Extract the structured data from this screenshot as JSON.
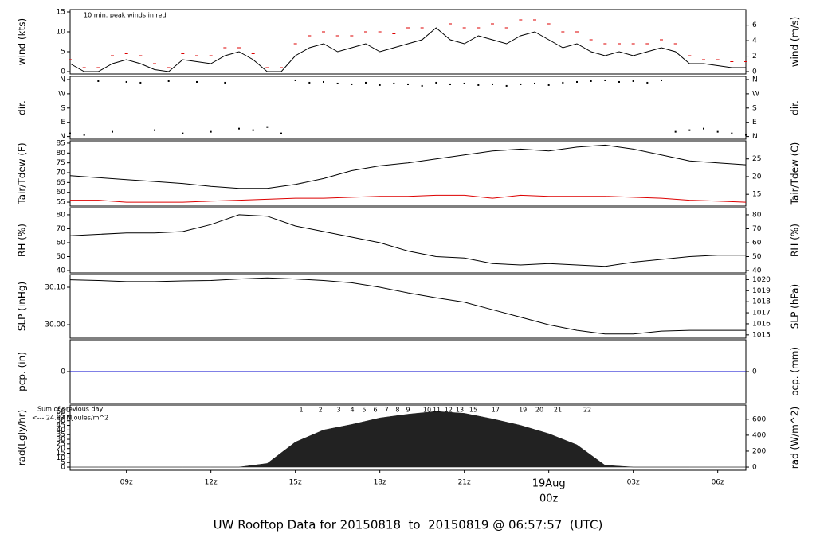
{
  "chart_data": [
    {
      "type": "line",
      "y_label": "wind (kts)",
      "y2_label": "wind (m/s)",
      "annotation": "10 min. peak winds in red",
      "annotation_color": "#dd0000",
      "ylim": [
        -0.6,
        15.6
      ],
      "yticks": [
        0,
        5,
        10,
        15
      ],
      "y2lim": [
        -0.31,
        8.02
      ],
      "y2ticks": [
        0,
        2,
        4,
        6
      ],
      "x": [
        7,
        7.5,
        8,
        8.5,
        9,
        9.5,
        10,
        10.5,
        11,
        11.5,
        12,
        12.5,
        13,
        13.5,
        14,
        14.5,
        15,
        15.5,
        16,
        16.5,
        17,
        17.5,
        18,
        18.5,
        19,
        19.5,
        20,
        20.5,
        21,
        21.5,
        22,
        22.5,
        23,
        23.5,
        24,
        24.5,
        25,
        25.5,
        26,
        26.5,
        27,
        27.5,
        28,
        28.5,
        29,
        29.5,
        30,
        30.5,
        31
      ],
      "series": [
        {
          "color": "#000000",
          "values": [
            2,
            0,
            0,
            2,
            3,
            2,
            0.5,
            0,
            3,
            2.5,
            2,
            4,
            5,
            3,
            0,
            0,
            4,
            6,
            7,
            5,
            6,
            7,
            5,
            6,
            7,
            8,
            11,
            8,
            7,
            9,
            8,
            7,
            9,
            10,
            8,
            6,
            7,
            5,
            4,
            5,
            4,
            5,
            6,
            5,
            2,
            2,
            1.5,
            1,
            1
          ]
        },
        {
          "color": "#dd0000",
          "marker": "dash",
          "values": [
            3,
            1,
            1,
            4,
            4.5,
            4,
            2,
            1,
            4.5,
            4,
            4,
            6,
            6,
            4.5,
            1,
            1,
            7,
            9,
            10,
            9,
            9,
            10,
            10,
            9.5,
            11,
            11,
            14.5,
            12,
            11,
            11,
            12,
            11,
            13,
            13,
            12,
            10,
            10,
            8,
            7,
            7,
            7,
            7,
            8,
            7,
            4,
            3,
            3,
            2.5,
            2.5
          ]
        }
      ]
    },
    {
      "type": "scatter",
      "y_label": "dir.",
      "y2_label": "dir.",
      "ylim": [
        -17,
        380
      ],
      "yticks": [
        {
          "value": 0,
          "label": "N"
        },
        {
          "value": 90,
          "label": "E"
        },
        {
          "value": 180,
          "label": "S"
        },
        {
          "value": 270,
          "label": "W"
        },
        {
          "value": 360,
          "label": "N"
        }
      ],
      "y2lim": [
        -17,
        380
      ],
      "y2ticks": [
        {
          "value": 0,
          "label": "N"
        },
        {
          "value": 90,
          "label": "E"
        },
        {
          "value": 180,
          "label": "S"
        },
        {
          "value": 270,
          "label": "W"
        },
        {
          "value": 360,
          "label": "N"
        }
      ],
      "x": [
        7,
        7.5,
        8,
        8.5,
        9,
        9.5,
        10,
        10.5,
        11,
        11.5,
        12,
        12.5,
        13,
        13.5,
        14,
        14.5,
        15,
        15.5,
        16,
        16.5,
        17,
        17.5,
        18,
        18.5,
        19,
        19.5,
        20,
        20.5,
        21,
        21.5,
        22,
        22.5,
        23,
        23.5,
        24,
        24.5,
        25,
        25.5,
        26,
        26.5,
        27,
        27.5,
        28,
        28.5,
        29,
        29.5,
        30,
        30.5,
        31
      ],
      "series": [
        {
          "color": "#000000",
          "values": [
            20,
            10,
            350,
            30,
            345,
            340,
            40,
            350,
            20,
            345,
            30,
            340,
            50,
            40,
            60,
            20,
            355,
            340,
            345,
            335,
            330,
            340,
            325,
            335,
            330,
            320,
            340,
            330,
            335,
            325,
            330,
            320,
            330,
            335,
            325,
            340,
            345,
            350,
            355,
            345,
            350,
            340,
            355,
            30,
            40,
            50,
            30,
            20,
            10
          ]
        }
      ]
    },
    {
      "type": "line",
      "y_label": "Tair/Tdew (F)",
      "y2_label": "Tair/Tdew (C)",
      "ylim": [
        53.0,
        86.2
      ],
      "yticks": [
        55,
        60,
        65,
        70,
        75,
        80,
        85
      ],
      "y2lim": [
        11.67,
        30.11
      ],
      "y2ticks": [
        15,
        20,
        25
      ],
      "x": [
        7,
        8,
        9,
        10,
        11,
        12,
        13,
        14,
        15,
        16,
        17,
        18,
        19,
        20,
        21,
        22,
        23,
        24,
        25,
        26,
        27,
        28,
        29,
        30,
        31
      ],
      "series": [
        {
          "color": "#000000",
          "values": [
            68.5,
            67.5,
            66.5,
            65.5,
            64.5,
            63,
            62,
            62,
            64,
            67,
            71,
            73.5,
            75,
            77,
            79,
            81,
            82,
            81,
            83,
            84,
            82,
            79,
            76,
            75,
            74
          ]
        },
        {
          "color": "#dd0000",
          "values": [
            56,
            56,
            55,
            55,
            55,
            55.5,
            56,
            56.5,
            57,
            57,
            57.5,
            58,
            58,
            58.5,
            58.5,
            57,
            58.5,
            58,
            58,
            58,
            57.5,
            57,
            56,
            55.5,
            55
          ]
        }
      ]
    },
    {
      "type": "line",
      "y_label": "RH (%)",
      "y2_label": "RH (%)",
      "ylim": [
        38.3,
        85.1
      ],
      "yticks": [
        40,
        50,
        60,
        70,
        80
      ],
      "y2lim": [
        38.3,
        85.1
      ],
      "y2ticks": [
        40,
        50,
        60,
        70,
        80
      ],
      "x": [
        7,
        8,
        9,
        10,
        11,
        12,
        13,
        14,
        15,
        16,
        17,
        18,
        19,
        20,
        21,
        22,
        23,
        24,
        25,
        26,
        27,
        28,
        29,
        30,
        31
      ],
      "series": [
        {
          "color": "#000000",
          "values": [
            65,
            66,
            67,
            67,
            68,
            73,
            80,
            79,
            72,
            68,
            64,
            60,
            54,
            50,
            49,
            45,
            44,
            45,
            44,
            43,
            46,
            48,
            50,
            51,
            51
          ]
        }
      ]
    },
    {
      "type": "line",
      "y_label": "SLP (inHg)",
      "y2_label": "SLP (hPa)",
      "ylim": [
        29.964,
        30.134
      ],
      "yticks": [
        {
          "value": 30.0,
          "label": "30.00"
        },
        {
          "value": 30.1,
          "label": "30.10"
        }
      ],
      "y2lim": [
        1014.7,
        1020.46
      ],
      "y2ticks": [
        1015,
        1016,
        1017,
        1018,
        1019,
        1020
      ],
      "x": [
        7,
        8,
        9,
        10,
        11,
        12,
        13,
        14,
        15,
        16,
        17,
        18,
        19,
        20,
        21,
        22,
        23,
        24,
        25,
        26,
        27,
        28,
        29,
        30,
        31
      ],
      "series": [
        {
          "color": "#000000",
          "values": [
            30.12,
            30.118,
            30.115,
            30.115,
            30.117,
            30.118,
            30.122,
            30.125,
            30.122,
            30.118,
            30.112,
            30.1,
            30.085,
            30.072,
            30.06,
            30.04,
            30.02,
            30.0,
            29.985,
            29.975,
            29.975,
            29.983,
            29.985,
            29.985,
            29.985
          ]
        }
      ]
    },
    {
      "type": "line",
      "y_label": "pcp. (in)",
      "y2_label": "pcp. (mm)",
      "ylim": [
        -0.1,
        0.1
      ],
      "yticks": [
        0
      ],
      "y2lim": [
        -2.54,
        2.54
      ],
      "y2ticks": [
        0
      ],
      "x": [
        7,
        8,
        9,
        10,
        11,
        12,
        13,
        14,
        15,
        16,
        17,
        18,
        19,
        20,
        21,
        22,
        23,
        24,
        25,
        26,
        27,
        28,
        29,
        30,
        31
      ],
      "series": [
        {
          "color": "#0000cc",
          "values": [
            0,
            0,
            0,
            0,
            0,
            0,
            0,
            0,
            0,
            0,
            0,
            0,
            0,
            0,
            0,
            0,
            0,
            0,
            0,
            0,
            0,
            0,
            0,
            0,
            0
          ]
        }
      ]
    },
    {
      "type": "area",
      "y_label": "rad(Lgly/hr)",
      "y2_label": "rad (W/m^2)",
      "ylim": [
        -3.4,
        66.9
      ],
      "yticks": [
        0,
        5,
        10,
        15,
        20,
        25,
        30,
        35,
        40,
        45,
        50,
        55,
        60
      ],
      "y2lim": [
        -39.5,
        777.5
      ],
      "y2ticks": [
        0,
        200,
        400,
        600
      ],
      "x": [
        7,
        8,
        9,
        10,
        11,
        12,
        13,
        14,
        15,
        16,
        17,
        18,
        19,
        20,
        21,
        22,
        23,
        24,
        25,
        26,
        27,
        28,
        29,
        30,
        31
      ],
      "series": [
        {
          "color": "#222222",
          "values": [
            0,
            0,
            0,
            0,
            0,
            0,
            0,
            4,
            27,
            40,
            46,
            53,
            57,
            60,
            58,
            52,
            45,
            36,
            24,
            2,
            0,
            0,
            0,
            0,
            0
          ]
        }
      ],
      "notes": [
        "Sum of previous day",
        "<--- 24.63 MJoules/m^2"
      ],
      "notes_color": "#9900cc",
      "hour_marks": {
        "x": [
          15.21,
          15.89,
          16.54,
          17.02,
          17.44,
          17.84,
          18.24,
          18.63,
          19.0,
          19.68,
          20.02,
          20.44,
          20.84,
          21.32,
          22.11,
          23.08,
          23.67,
          24.32,
          25.37
        ],
        "labels": [
          1,
          2,
          3,
          4,
          5,
          6,
          7,
          8,
          9,
          10,
          11,
          12,
          13,
          15,
          17,
          19,
          20,
          21,
          22
        ]
      },
      "xlim": [
        7,
        31
      ],
      "xticks": [
        {
          "value": 9,
          "label": "09z"
        },
        {
          "value": 12,
          "label": "12z"
        },
        {
          "value": 15,
          "label": "15z"
        },
        {
          "value": 18,
          "label": "18z"
        },
        {
          "value": 21,
          "label": "21z"
        },
        {
          "value": 24,
          "label": "00z"
        },
        {
          "value": 27,
          "label": "03z"
        },
        {
          "value": 30,
          "label": "06z"
        }
      ],
      "date_marker": {
        "value": 24,
        "label": "19Aug",
        "color": "#ee0000"
      },
      "title": "UW Rooftop Data for 20150818  to  20150819 @ 06:57:57  (UTC)",
      "title_color": "#1a1acc"
    }
  ]
}
